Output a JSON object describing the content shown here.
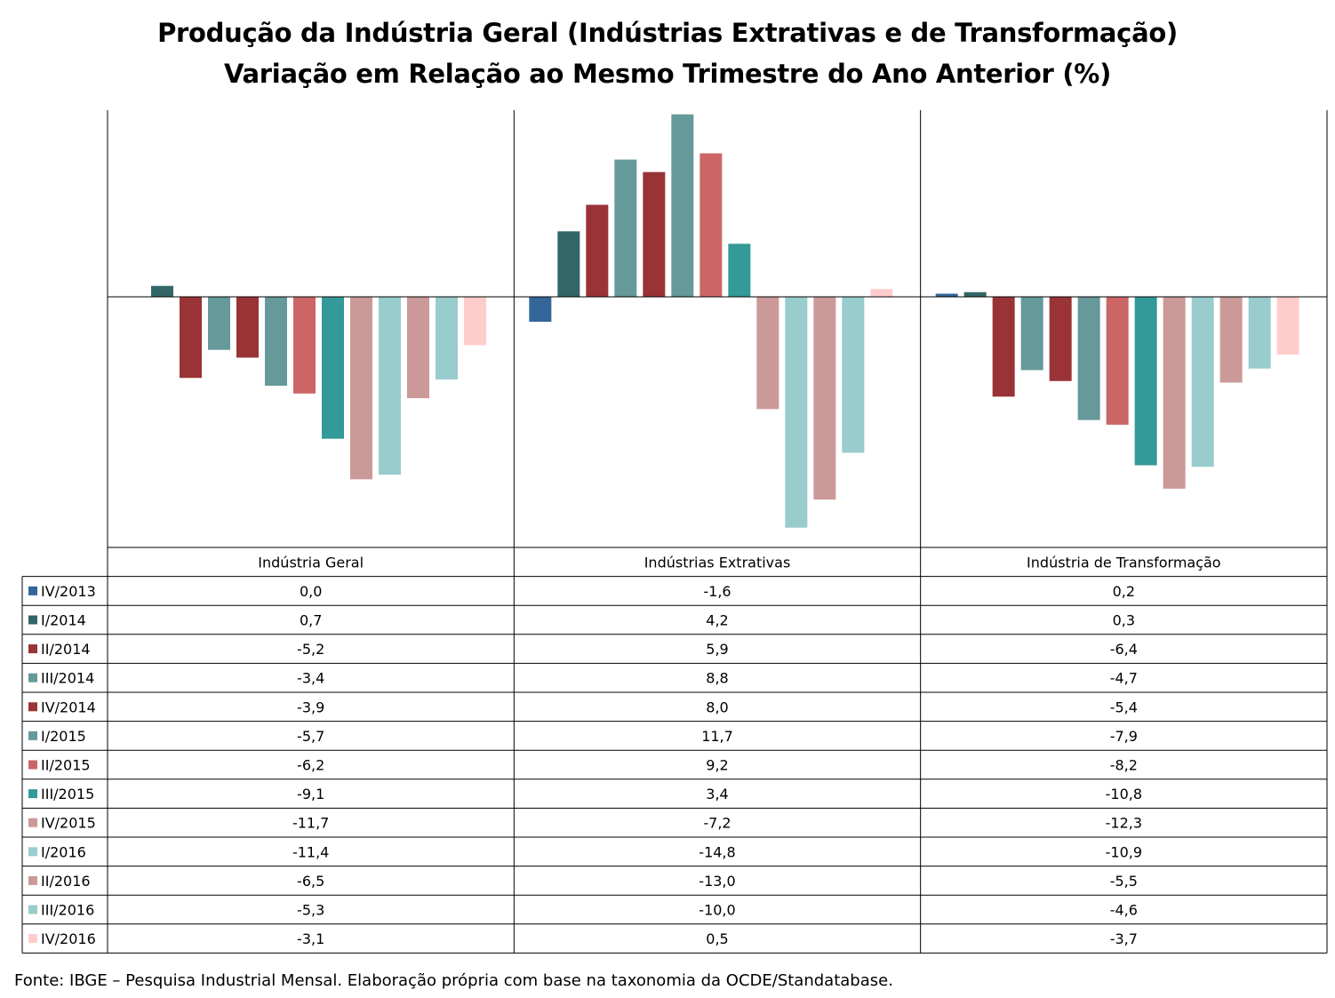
{
  "title_line1": "Produção da Indústria Geral (Indústrias Extrativas e de Transformação)",
  "title_line2": "Variação em Relação ao Mesmo Trimestre do Ano Anterior (%)",
  "footer": "Fonte: IBGE – Pesquisa Industrial Mensal. Elaboração própria com base na taxonomia da OCDE/Standatabase.",
  "chart_data": {
    "type": "bar",
    "categories": [
      "Indústria Geral",
      "Indústrias Extrativas",
      "Indústria de Transformação"
    ],
    "ylim": [
      -15.6,
      12.2
    ],
    "grid": false,
    "legend_placement": "data-table-left",
    "series": [
      {
        "name": "IV/2013",
        "color": "#336699",
        "values": [
          0.0,
          -1.6,
          0.2
        ],
        "labels": [
          "0,0",
          "-1,6",
          "0,2"
        ]
      },
      {
        "name": "I/2014",
        "color": "#336666",
        "values": [
          0.7,
          4.2,
          0.3
        ],
        "labels": [
          "0,7",
          "4,2",
          "0,3"
        ]
      },
      {
        "name": "II/2014",
        "color": "#993336",
        "values": [
          -5.2,
          5.9,
          -6.4
        ],
        "labels": [
          "-5,2",
          "5,9",
          "-6,4"
        ]
      },
      {
        "name": "III/2014",
        "color": "#669999",
        "values": [
          -3.4,
          8.8,
          -4.7
        ],
        "labels": [
          "-3,4",
          "8,8",
          "-4,7"
        ]
      },
      {
        "name": "IV/2014",
        "color": "#993336",
        "values": [
          -3.9,
          8.0,
          -5.4
        ],
        "labels": [
          "-3,9",
          "8,0",
          "-5,4"
        ]
      },
      {
        "name": "I/2015",
        "color": "#669999",
        "values": [
          -5.7,
          11.7,
          -7.9
        ],
        "labels": [
          "-5,7",
          "11,7",
          "-7,9"
        ]
      },
      {
        "name": "II/2015",
        "color": "#CC6666",
        "values": [
          -6.2,
          9.2,
          -8.2
        ],
        "labels": [
          "-6,2",
          "9,2",
          "-8,2"
        ]
      },
      {
        "name": "III/2015",
        "color": "#339999",
        "values": [
          -9.1,
          3.4,
          -10.8
        ],
        "labels": [
          "-9,1",
          "3,4",
          "-10,8"
        ]
      },
      {
        "name": "IV/2015",
        "color": "#CC9999",
        "values": [
          -11.7,
          -7.2,
          -12.3
        ],
        "labels": [
          "-11,7",
          "-7,2",
          "-12,3"
        ]
      },
      {
        "name": "I/2016",
        "color": "#99CCCC",
        "values": [
          -11.4,
          -14.8,
          -10.9
        ],
        "labels": [
          "-11,4",
          "-14,8",
          "-10,9"
        ]
      },
      {
        "name": "II/2016",
        "color": "#CC9999",
        "values": [
          -6.5,
          -13.0,
          -5.5
        ],
        "labels": [
          "-6,5",
          "-13,0",
          "-5,5"
        ]
      },
      {
        "name": "III/2016",
        "color": "#99CCCC",
        "values": [
          -5.3,
          -10.0,
          -4.6
        ],
        "labels": [
          "-5,3",
          "-10,0",
          "-4,6"
        ]
      },
      {
        "name": "IV/2016",
        "color": "#FFCCCC",
        "values": [
          -3.1,
          0.5,
          -3.7
        ],
        "labels": [
          "-3,1",
          "0,5",
          "-3,7"
        ]
      }
    ]
  }
}
